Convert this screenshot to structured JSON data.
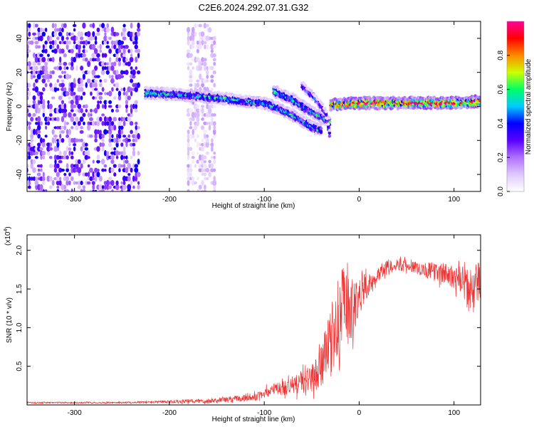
{
  "figure": {
    "title": "C2E6.2024.292.07.31.G32"
  },
  "chart_data": [
    {
      "type": "heatmap",
      "xlabel": "Height of straight line (km)",
      "ylabel": "Frequency (Hz)",
      "xlim": [
        -350,
        128
      ],
      "ylim": [
        -50,
        50
      ],
      "xticks": [
        -300,
        -200,
        -100,
        0,
        100
      ],
      "yticks": [
        -40,
        -20,
        0,
        20,
        40
      ],
      "grid": false,
      "colorbar": {
        "label": "Normalized spectral amplitude",
        "range": [
          0,
          1
        ],
        "ticks": [
          0.0,
          0.2,
          0.4,
          0.6,
          0.8
        ],
        "tick_labels": [
          "0.0",
          "0.2",
          "0.4",
          "0.6",
          "0.8"
        ],
        "colors": [
          "#ffffff",
          "#e0c8ff",
          "#b070ff",
          "#5a00ff",
          "#0000ff",
          "#00ccff",
          "#00ff66",
          "#ccff00",
          "#ff8800",
          "#ff0000",
          "#ff0099"
        ]
      },
      "features": [
        {
          "kind": "noise",
          "x_range": [
            -350,
            -230
          ],
          "y_range": [
            -50,
            50
          ],
          "amplitude": 0.15
        },
        {
          "kind": "noise",
          "x_range": [
            -180,
            -150
          ],
          "y_range": [
            -50,
            50
          ],
          "amplitude": 0.06
        },
        {
          "kind": "band",
          "points": [
            [
              -225,
              8
            ],
            [
              -190,
              7
            ],
            [
              -150,
              5
            ],
            [
              -120,
              3
            ],
            [
              -100,
              2
            ],
            [
              -90,
              0
            ],
            [
              -70,
              -5
            ],
            [
              -50,
              -12
            ],
            [
              -40,
              -14
            ]
          ],
          "width": 3,
          "amplitude": 0.5
        },
        {
          "kind": "band",
          "points": [
            [
              -90,
              9
            ],
            [
              -70,
              4
            ],
            [
              -60,
              0
            ],
            [
              -50,
              -3
            ],
            [
              -40,
              -6
            ],
            [
              -30,
              -10
            ]
          ],
          "width": 3,
          "amplitude": 0.5
        },
        {
          "kind": "band",
          "points": [
            [
              -60,
              12
            ],
            [
              -45,
              4
            ],
            [
              -35,
              -4
            ],
            [
              -30,
              -20
            ]
          ],
          "width": 2,
          "amplitude": 0.4
        },
        {
          "kind": "band",
          "points": [
            [
              -30,
              1
            ],
            [
              0,
              2
            ],
            [
              50,
              2
            ],
            [
              100,
              2
            ],
            [
              128,
              3
            ]
          ],
          "width": 3,
          "amplitude": 0.95
        }
      ]
    },
    {
      "type": "line",
      "xlabel": "Height of straight line (km)",
      "ylabel": "SNR (10 * v/v)",
      "scale_label": "(x10",
      "scale_exponent": "4",
      "scale_suffix": ")",
      "xlim": [
        -350,
        128
      ],
      "ylim": [
        0,
        2.2
      ],
      "xticks": [
        -300,
        -200,
        -100,
        0,
        100
      ],
      "yticks": [
        0.5,
        1.0,
        1.5,
        2.0
      ],
      "ytick_labels": [
        "0.5",
        "1.0",
        "1.5",
        "2.0"
      ],
      "grid": false,
      "series": [
        {
          "color": "#ee3333",
          "x": [
            -350,
            -300,
            -250,
            -200,
            -170,
            -150,
            -130,
            -110,
            -100,
            -90,
            -80,
            -70,
            -60,
            -50,
            -45,
            -40,
            -35,
            -30,
            -25,
            -20,
            -15,
            -10,
            -5,
            0,
            5,
            10,
            20,
            30,
            40,
            50,
            60,
            70,
            80,
            90,
            100,
            110,
            115,
            120,
            125,
            128
          ],
          "y": [
            0.03,
            0.03,
            0.03,
            0.04,
            0.05,
            0.06,
            0.08,
            0.1,
            0.15,
            0.2,
            0.22,
            0.25,
            0.3,
            0.35,
            0.4,
            0.5,
            0.65,
            0.8,
            1.0,
            1.15,
            1.25,
            1.2,
            1.3,
            1.4,
            1.5,
            1.55,
            1.7,
            1.8,
            1.82,
            1.8,
            1.78,
            1.75,
            1.72,
            1.7,
            1.65,
            1.6,
            1.5,
            1.45,
            1.6,
            1.65
          ],
          "noise": [
            0.01,
            0.01,
            0.01,
            0.02,
            0.03,
            0.03,
            0.04,
            0.05,
            0.06,
            0.08,
            0.1,
            0.12,
            0.15,
            0.18,
            0.22,
            0.28,
            0.35,
            0.45,
            0.55,
            0.6,
            0.55,
            0.45,
            0.35,
            0.25,
            0.18,
            0.14,
            0.1,
            0.08,
            0.08,
            0.08,
            0.08,
            0.1,
            0.12,
            0.14,
            0.15,
            0.2,
            0.25,
            0.3,
            0.3,
            0.3
          ]
        }
      ]
    }
  ]
}
